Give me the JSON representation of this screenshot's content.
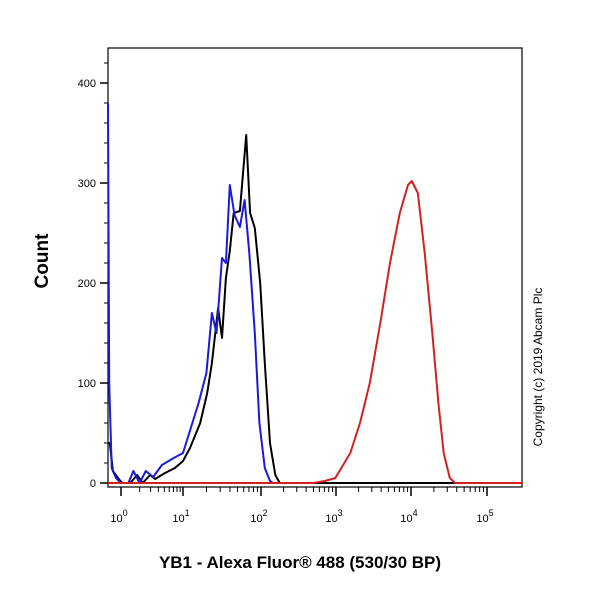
{
  "chart_data": {
    "type": "line",
    "title": "",
    "xlabel": "YB1 - Alexa Fluor® 488 (530/30 BP)",
    "ylabel": "Count",
    "x_scale": "log10 (biexponential display)",
    "xlim_log10": [
      -0.21,
      5.47
    ],
    "ylim": [
      0,
      435
    ],
    "y_ticks": [
      "0",
      "100",
      "200",
      "300",
      "400"
    ],
    "y_tick_values": [
      0,
      100,
      200,
      300,
      400
    ],
    "x_ticks": [
      {
        "base": "10",
        "exp": "0"
      },
      {
        "base": "10",
        "exp": "1"
      },
      {
        "base": "10",
        "exp": "2"
      },
      {
        "base": "10",
        "exp": "3"
      },
      {
        "base": "10",
        "exp": "4"
      },
      {
        "base": "10",
        "exp": "5"
      }
    ],
    "series": [
      {
        "name": "black",
        "color": "#000000",
        "log10_x": [
          -0.21,
          -0.18,
          -0.13,
          -0.05,
          0.02,
          0.15,
          0.26,
          0.35,
          0.47,
          0.55,
          0.71,
          0.87,
          1.0,
          1.09,
          1.22,
          1.31,
          1.37,
          1.45,
          1.5,
          1.55,
          1.6,
          1.65,
          1.73,
          1.81,
          1.86,
          1.92,
          1.99,
          2.05,
          2.12,
          2.19,
          2.25,
          5.47
        ],
        "y": [
          40,
          40,
          12,
          5,
          0,
          0,
          8,
          0,
          8,
          4,
          10,
          15,
          22,
          35,
          60,
          90,
          120,
          175,
          145,
          205,
          232,
          270,
          272,
          348,
          270,
          255,
          200,
          120,
          40,
          8,
          0,
          0
        ]
      },
      {
        "name": "blue",
        "color": "#1a1adc",
        "log10_x": [
          -0.21,
          -0.19,
          -0.15,
          -0.08,
          0.0,
          0.12,
          0.2,
          0.3,
          0.4,
          0.52,
          0.66,
          0.85,
          1.0,
          1.1,
          1.2,
          1.3,
          1.37,
          1.43,
          1.5,
          1.55,
          1.6,
          1.66,
          1.73,
          1.79,
          1.85,
          1.92,
          1.98,
          2.05,
          2.12,
          2.16
        ],
        "y": [
          380,
          100,
          15,
          5,
          0,
          0,
          12,
          0,
          12,
          6,
          18,
          25,
          30,
          55,
          80,
          110,
          170,
          150,
          225,
          220,
          298,
          268,
          256,
          283,
          230,
          150,
          60,
          15,
          2,
          0
        ]
      },
      {
        "name": "red",
        "color": "#d42020",
        "log10_x": [
          -0.21,
          2.7,
          2.85,
          2.99,
          3.19,
          3.32,
          3.45,
          3.59,
          3.72,
          3.85,
          3.96,
          4.01,
          4.09,
          4.18,
          4.28,
          4.36,
          4.43,
          4.51,
          4.58,
          5.47
        ],
        "y": [
          0,
          0,
          2,
          5,
          30,
          60,
          100,
          160,
          220,
          270,
          298,
          302,
          290,
          230,
          150,
          80,
          30,
          5,
          0,
          0
        ]
      }
    ]
  },
  "copyright": "Copyright (c) 2019 Abcam Plc"
}
